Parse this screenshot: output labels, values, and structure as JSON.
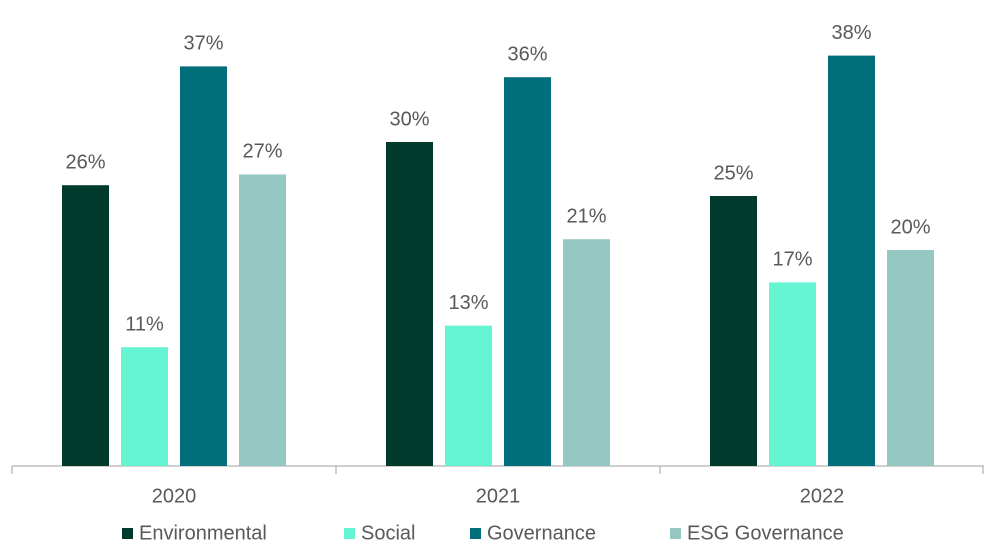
{
  "chart_data": {
    "type": "bar",
    "categories": [
      "2020",
      "2021",
      "2022"
    ],
    "series": [
      {
        "name": "Environmental",
        "color": "#003a2c",
        "values": [
          26,
          30,
          25
        ],
        "value_labels": [
          "26%",
          "30%",
          "25%"
        ]
      },
      {
        "name": "Social",
        "color": "#66f5d2",
        "values": [
          11,
          13,
          17
        ],
        "value_labels": [
          "11%",
          "13%",
          "17%"
        ]
      },
      {
        "name": "Governance",
        "color": "#006e7b",
        "values": [
          37,
          36,
          38
        ],
        "value_labels": [
          "37%",
          "36%",
          "38%"
        ]
      },
      {
        "name": "ESG Governance",
        "color": "#95c7c3",
        "values": [
          27,
          21,
          20
        ],
        "value_labels": [
          "27%",
          "21%",
          "20%"
        ]
      }
    ],
    "ylim": [
      0,
      40
    ],
    "legend": "bottom"
  }
}
